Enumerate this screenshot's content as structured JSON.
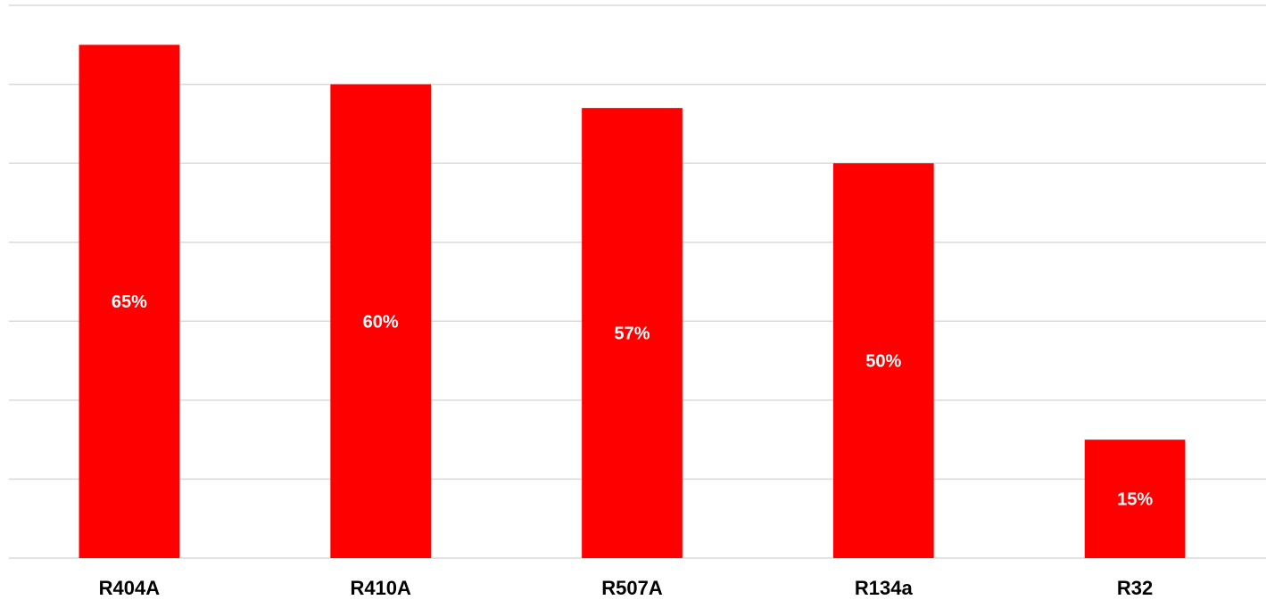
{
  "chart_data": {
    "type": "bar",
    "categories": [
      "R404A",
      "R410A",
      "R507A",
      "R134a",
      "R32"
    ],
    "values": [
      65,
      60,
      57,
      50,
      15
    ],
    "data_labels": [
      "65%",
      "60%",
      "57%",
      "50%",
      "15%"
    ],
    "title": "",
    "xlabel": "",
    "ylabel": "",
    "ylim": [
      0,
      70
    ],
    "grid": true,
    "legend": "none",
    "colors": {
      "bar": "#ff0000",
      "data_label": "#ffffff",
      "gridline": "#d9d9d9",
      "category_label": "#000000"
    }
  }
}
